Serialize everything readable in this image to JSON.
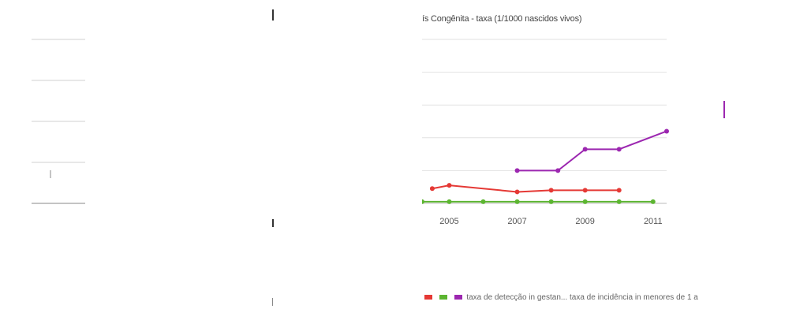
{
  "page": {
    "title": "ís Congênita - taxa (1/1000 nascidos vivos)",
    "legend_text": "taxa de detecção in gestan... taxa de incidência in menores de 1 a",
    "legend_colors": [
      "#e53935",
      "#5cb531",
      "#9c27b0"
    ]
  },
  "chart_data": {
    "type": "line",
    "title": "ís Congênita - taxa (1/1000 nascidos vivos)",
    "xlabel": "",
    "ylabel": "",
    "x_ticks": [
      "2005",
      "2007",
      "2009",
      "2011"
    ],
    "xlim": [
      2004.2,
      2011.4
    ],
    "ylim": [
      0,
      5
    ],
    "grid": true,
    "legend_position": "bottom",
    "series": [
      {
        "name": "",
        "color": "#5cb531",
        "x": [
          2004.2,
          2005,
          2006,
          2007,
          2008,
          2009,
          2010,
          2011
        ],
        "y": [
          0.05,
          0.05,
          0.05,
          0.05,
          0.05,
          0.05,
          0.05,
          0.05
        ]
      },
      {
        "name": "",
        "color": "#e53935",
        "x": [
          2004.5,
          2005,
          2007,
          2008,
          2009,
          2010
        ],
        "y": [
          0.45,
          0.55,
          0.35,
          0.4,
          0.4,
          0.4
        ]
      },
      {
        "name": "",
        "color": "#9c27b0",
        "x": [
          2007.0,
          2008.2,
          2009.0,
          2010.0,
          2011.4
        ],
        "y": [
          1.0,
          1.0,
          1.65,
          1.65,
          2.2
        ]
      }
    ]
  }
}
